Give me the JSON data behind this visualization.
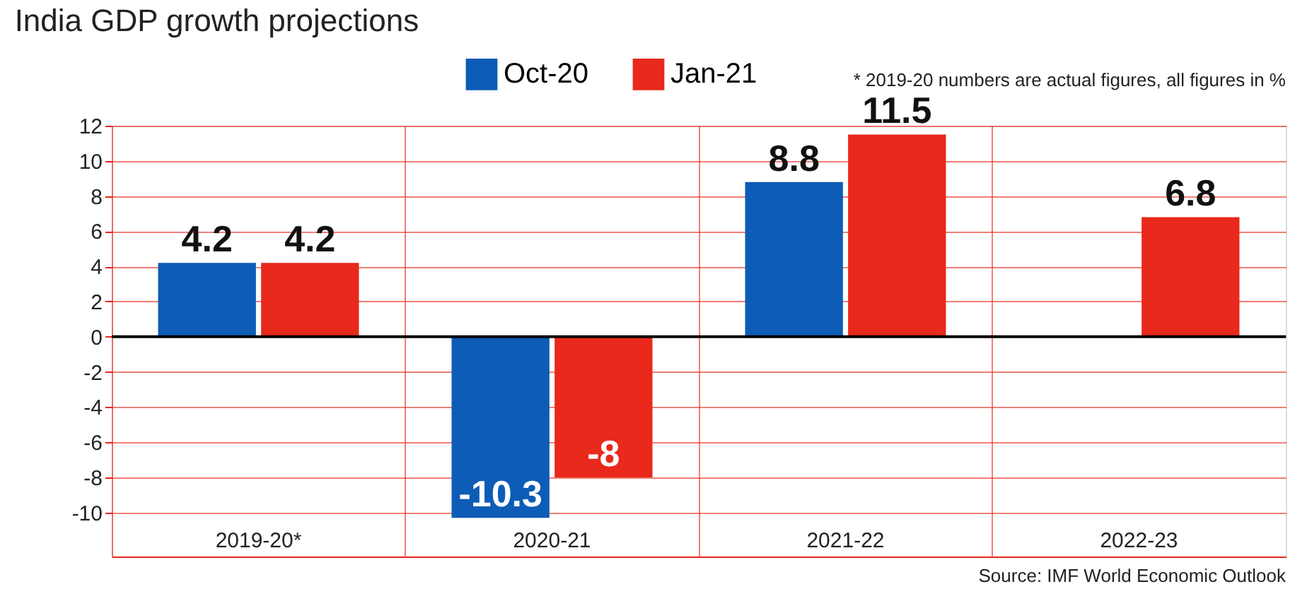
{
  "chart_data": {
    "type": "bar",
    "title": "India GDP growth projections",
    "categories": [
      "2019-20*",
      "2020-21",
      "2021-22",
      "2022-23"
    ],
    "series": [
      {
        "name": "Oct-20",
        "color": "#0d5cb6",
        "values": [
          4.2,
          -10.3,
          8.8,
          null
        ]
      },
      {
        "name": "Jan-21",
        "color": "#e8291c",
        "values": [
          4.2,
          -8,
          11.5,
          6.8
        ]
      }
    ],
    "ylim": [
      -12.5,
      12
    ],
    "yticks": [
      -10,
      -8,
      -6,
      -4,
      -2,
      0,
      2,
      4,
      6,
      8,
      10,
      12
    ],
    "grid": true,
    "legend": "top",
    "data_labels": true,
    "ref_lines": [
      {
        "axis": "y",
        "value": 0,
        "color": "#000000"
      }
    ],
    "annotations": [
      "* 2019-20 numbers are actual figures, all figures in %",
      "Source: IMF World Economic Outlook"
    ]
  }
}
